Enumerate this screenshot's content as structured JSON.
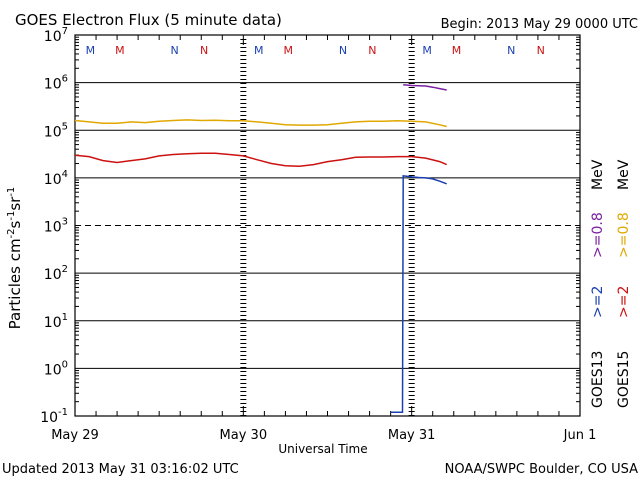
{
  "chart_data": {
    "type": "line",
    "title": "GOES Electron Flux (5 minute data)",
    "begin_label": "Begin: 2013 May 29 0000 UTC",
    "xlabel": "Universal Time",
    "ylabel": "Particles cm",
    "ylabel_exp1": "-2",
    "ylabel_mid": "s",
    "ylabel_exp2": "-1",
    "ylabel_end": "sr",
    "ylabel_exp3": "-1",
    "updated": "Updated 2013 May 31 03:16:02 UTC",
    "credit": "NOAA/SWPC Boulder, CO USA",
    "y_scale": "log",
    "ylim": [
      0.1,
      10000000
    ],
    "xlim_hours": [
      0,
      72
    ],
    "x_ticks": [
      {
        "label": "May 29",
        "hour": 0
      },
      {
        "label": "May 30",
        "hour": 24
      },
      {
        "label": "May 31",
        "hour": 48
      },
      {
        "label": "Jun 1",
        "hour": 72
      }
    ],
    "y_ticks": [
      {
        "base": "10",
        "exp": "-1",
        "value": 0.1
      },
      {
        "base": "10",
        "exp": "0",
        "value": 1
      },
      {
        "base": "10",
        "exp": "1",
        "value": 10
      },
      {
        "base": "10",
        "exp": "2",
        "value": 100
      },
      {
        "base": "10",
        "exp": "3",
        "value": 1000
      },
      {
        "base": "10",
        "exp": "4",
        "value": 10000
      },
      {
        "base": "10",
        "exp": "5",
        "value": 100000
      },
      {
        "base": "10",
        "exp": "6",
        "value": 1000000
      },
      {
        "base": "10",
        "exp": "7",
        "value": 10000000
      }
    ],
    "threshold_line": 1000,
    "noon_midnight_markers": [
      {
        "label": "M",
        "hour": 2.2,
        "color": "#1a3fb0"
      },
      {
        "label": "M",
        "hour": 6.4,
        "color": "#cc1111"
      },
      {
        "label": "N",
        "hour": 14.2,
        "color": "#1a3fb0"
      },
      {
        "label": "N",
        "hour": 18.4,
        "color": "#cc1111"
      },
      {
        "label": "M",
        "hour": 26.2,
        "color": "#1a3fb0"
      },
      {
        "label": "M",
        "hour": 30.4,
        "color": "#cc1111"
      },
      {
        "label": "N",
        "hour": 38.2,
        "color": "#1a3fb0"
      },
      {
        "label": "N",
        "hour": 42.4,
        "color": "#cc1111"
      },
      {
        "label": "M",
        "hour": 50.2,
        "color": "#1a3fb0"
      },
      {
        "label": "M",
        "hour": 54.4,
        "color": "#cc1111"
      },
      {
        "label": "N",
        "hour": 62.2,
        "color": "#1a3fb0"
      },
      {
        "label": "N",
        "hour": 66.4,
        "color": "#cc1111"
      }
    ],
    "dash_hours": [
      24,
      48
    ],
    "legend": {
      "goes13": "GOES13",
      "goes15": "GOES15",
      "g13_ge2": ">=2",
      "g13_ge08": ">=0.8",
      "g15_ge2": ">=2",
      "g15_ge08": ">=0.8",
      "mev": "MeV",
      "mev2": "MeV"
    },
    "series": [
      {
        "name": "GOES15 >=0.8 MeV",
        "color": "#e0a800",
        "points": [
          [
            0,
            160000
          ],
          [
            2,
            150000
          ],
          [
            4,
            140000
          ],
          [
            6,
            140000
          ],
          [
            8,
            150000
          ],
          [
            10,
            145000
          ],
          [
            12,
            155000
          ],
          [
            14,
            160000
          ],
          [
            16,
            165000
          ],
          [
            18,
            160000
          ],
          [
            20,
            162000
          ],
          [
            22,
            158000
          ],
          [
            24,
            158000
          ],
          [
            26,
            150000
          ],
          [
            28,
            140000
          ],
          [
            30,
            130000
          ],
          [
            32,
            128000
          ],
          [
            34,
            128000
          ],
          [
            36,
            130000
          ],
          [
            38,
            140000
          ],
          [
            40,
            150000
          ],
          [
            42,
            155000
          ],
          [
            44,
            155000
          ],
          [
            46,
            158000
          ],
          [
            48,
            155000
          ],
          [
            50,
            150000
          ],
          [
            52,
            130000
          ],
          [
            53,
            120000
          ]
        ]
      },
      {
        "name": "GOES15 >=2 MeV",
        "color": "#cc1111",
        "points": [
          [
            0,
            30000
          ],
          [
            2,
            28000
          ],
          [
            4,
            23000
          ],
          [
            6,
            21000
          ],
          [
            8,
            23000
          ],
          [
            10,
            25000
          ],
          [
            12,
            29000
          ],
          [
            14,
            31000
          ],
          [
            16,
            32000
          ],
          [
            18,
            33000
          ],
          [
            20,
            33000
          ],
          [
            22,
            31000
          ],
          [
            24,
            29000
          ],
          [
            26,
            24000
          ],
          [
            28,
            20000
          ],
          [
            30,
            18000
          ],
          [
            32,
            17500
          ],
          [
            34,
            19000
          ],
          [
            36,
            22000
          ],
          [
            38,
            24000
          ],
          [
            40,
            27000
          ],
          [
            42,
            27500
          ],
          [
            44,
            27500
          ],
          [
            46,
            28000
          ],
          [
            48,
            28000
          ],
          [
            50,
            26000
          ],
          [
            52,
            22000
          ],
          [
            53,
            19000
          ]
        ]
      },
      {
        "name": "GOES13 >=0.8 MeV",
        "color": "#7b1fa2",
        "points": [
          [
            46.8,
            900000
          ],
          [
            48,
            870000
          ],
          [
            49,
            860000
          ],
          [
            50,
            850000
          ],
          [
            51,
            800000
          ],
          [
            52,
            750000
          ],
          [
            53,
            700000
          ]
        ]
      },
      {
        "name": "GOES13 >=2 MeV",
        "color": "#1a3fb0",
        "points": [
          [
            45,
            0.12
          ],
          [
            46.7,
            0.12
          ],
          [
            46.8,
            11000
          ],
          [
            48,
            10500
          ],
          [
            49,
            10200
          ],
          [
            50,
            10000
          ],
          [
            51,
            9500
          ],
          [
            52,
            8500
          ],
          [
            53,
            7500
          ]
        ]
      }
    ]
  }
}
